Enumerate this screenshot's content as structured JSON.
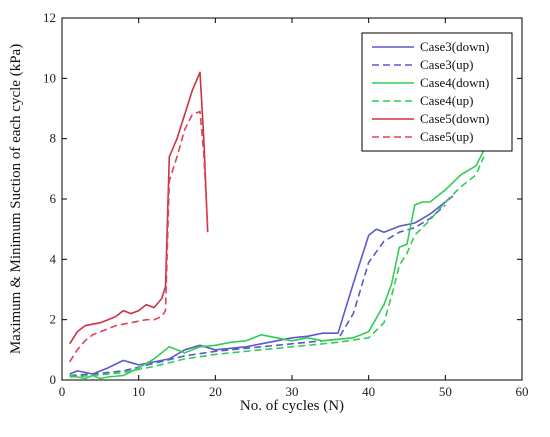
{
  "chart_data": {
    "type": "line",
    "title": "",
    "xlabel": "No. of cycles (N)",
    "ylabel": "Maximum & Minimum Suction of each cycle (kPa)",
    "xlim": [
      0,
      60
    ],
    "ylim": [
      0,
      12
    ],
    "xticks": [
      0,
      10,
      20,
      30,
      40,
      50,
      60
    ],
    "yticks": [
      0,
      2,
      4,
      6,
      8,
      10,
      12
    ],
    "grid": false,
    "legend_position": "top-right",
    "series": [
      {
        "name": "Case3(down)",
        "color": "#5b5bc8",
        "dash": "solid",
        "x": [
          1,
          2,
          4,
          6,
          8,
          10,
          12,
          14,
          16,
          18,
          20,
          22,
          24,
          26,
          28,
          30,
          32,
          34,
          36,
          38,
          40,
          41,
          42,
          44,
          46,
          48,
          50,
          51
        ],
        "y": [
          0.2,
          0.3,
          0.2,
          0.4,
          0.65,
          0.5,
          0.6,
          0.7,
          1.0,
          1.15,
          1.0,
          1.05,
          1.1,
          1.2,
          1.3,
          1.4,
          1.45,
          1.55,
          1.55,
          3.2,
          4.8,
          5.0,
          4.9,
          5.1,
          5.2,
          5.5,
          5.9,
          6.1
        ]
      },
      {
        "name": "Case3(up)",
        "color": "#5b5bc8",
        "dash": "dashed",
        "x": [
          1,
          4,
          8,
          12,
          16,
          20,
          24,
          28,
          32,
          36,
          38,
          40,
          42,
          44,
          46,
          48,
          50
        ],
        "y": [
          0.15,
          0.2,
          0.3,
          0.55,
          0.8,
          0.95,
          1.05,
          1.15,
          1.25,
          1.35,
          2.2,
          3.9,
          4.6,
          4.9,
          5.05,
          5.35,
          5.8
        ]
      },
      {
        "name": "Case4(down)",
        "color": "#33cc55",
        "dash": "solid",
        "x": [
          1,
          2,
          3,
          4,
          5,
          6,
          8,
          10,
          12,
          14,
          16,
          18,
          20,
          22,
          24,
          26,
          28,
          30,
          32,
          34,
          36,
          38,
          40,
          42,
          43,
          44,
          45,
          46,
          47,
          48,
          50,
          52,
          54,
          55
        ],
        "y": [
          0.15,
          0.1,
          0.05,
          0.15,
          0.05,
          0.1,
          0.15,
          0.4,
          0.7,
          1.1,
          0.9,
          1.1,
          1.15,
          1.25,
          1.3,
          1.5,
          1.4,
          1.3,
          1.4,
          1.3,
          1.35,
          1.4,
          1.6,
          2.5,
          3.2,
          4.4,
          4.5,
          5.8,
          5.9,
          5.9,
          6.3,
          6.8,
          7.1,
          7.6
        ]
      },
      {
        "name": "Case4(up)",
        "color": "#33cc55",
        "dash": "dashed",
        "x": [
          1,
          4,
          8,
          12,
          16,
          20,
          24,
          28,
          32,
          36,
          40,
          42,
          43,
          44,
          45,
          46,
          48,
          50,
          52,
          54,
          55
        ],
        "y": [
          0.1,
          0.15,
          0.25,
          0.45,
          0.7,
          0.85,
          0.95,
          1.05,
          1.15,
          1.25,
          1.4,
          1.9,
          2.8,
          3.8,
          4.2,
          4.8,
          5.3,
          5.9,
          6.4,
          6.8,
          7.4
        ]
      },
      {
        "name": "Case5(down)",
        "color": "#cc3344",
        "dash": "solid",
        "x": [
          1,
          2,
          3,
          4,
          5,
          6,
          7,
          8,
          9,
          10,
          11,
          12,
          13,
          13.5,
          14,
          15,
          16,
          17,
          18,
          18.5,
          19
        ],
        "y": [
          1.2,
          1.6,
          1.8,
          1.85,
          1.9,
          2.0,
          2.1,
          2.3,
          2.2,
          2.3,
          2.5,
          2.4,
          2.7,
          3.1,
          7.4,
          8.0,
          8.8,
          9.6,
          10.2,
          8.0,
          4.9
        ]
      },
      {
        "name": "Case5(up)",
        "color": "#dd4455",
        "dash": "dashed",
        "x": [
          1,
          2,
          3,
          4,
          5,
          6,
          7,
          8,
          9,
          10,
          11,
          12,
          13,
          13.5,
          14,
          15,
          16,
          17,
          18,
          18.5,
          19
        ],
        "y": [
          0.6,
          1.0,
          1.3,
          1.5,
          1.6,
          1.7,
          1.8,
          1.85,
          1.9,
          1.95,
          2.0,
          2.0,
          2.1,
          2.3,
          6.6,
          7.4,
          8.3,
          8.8,
          8.9,
          7.5,
          5.0
        ]
      }
    ]
  }
}
